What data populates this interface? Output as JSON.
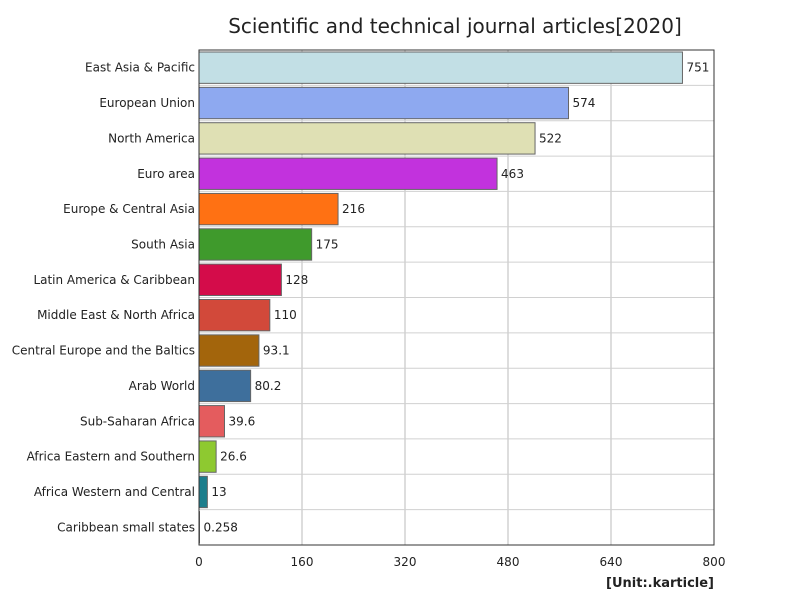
{
  "chart_data": {
    "type": "bar",
    "orientation": "horizontal",
    "title": "Scientific and technical journal articles[2020]",
    "unit": "[Unit:.karticle]",
    "categories": [
      "East Asia & Pacific",
      "European Union",
      "North America",
      "Euro area",
      "Europe & Central Asia",
      "South Asia",
      "Latin America & Caribbean",
      "Middle East & North Africa",
      "Central Europe and the Baltics",
      "Arab World",
      "Sub-Saharan Africa",
      "Africa Eastern and Southern",
      "Africa Western and Central",
      "Caribbean small states"
    ],
    "values": [
      751,
      574,
      522,
      463,
      216,
      175,
      128,
      110,
      93.1,
      80.2,
      39.6,
      26.6,
      13,
      0.258
    ],
    "value_labels": [
      "751",
      "574",
      "522",
      "463",
      "216",
      "175",
      "128",
      "110",
      "93.1",
      "80.2",
      "39.6",
      "26.6",
      "13",
      "0.258"
    ],
    "colors": [
      "#c2dfe5",
      "#8ea9f0",
      "#dfe0b4",
      "#c232dd",
      "#ff7113",
      "#3f9a2c",
      "#d40c4a",
      "#d2493a",
      "#a3650c",
      "#3e6f9c",
      "#e45c5e",
      "#8ec930",
      "#1c7e8c",
      "#e6e6e6"
    ],
    "xlim": [
      0,
      800
    ],
    "xticks": [
      0,
      160,
      320,
      480,
      640,
      800
    ],
    "xtick_labels": [
      "0",
      "160",
      "320",
      "480",
      "640",
      "800"
    ],
    "grid": true
  }
}
